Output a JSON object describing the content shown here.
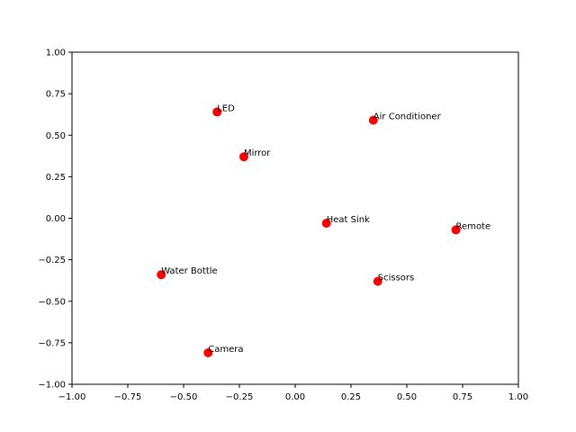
{
  "chart_data": {
    "type": "scatter",
    "title": "",
    "xlabel": "",
    "ylabel": "",
    "xlim": [
      -1.0,
      1.0
    ],
    "ylim": [
      -1.0,
      1.0
    ],
    "grid": false,
    "xticks": [
      -1.0,
      -0.75,
      -0.5,
      -0.25,
      0.0,
      0.25,
      0.5,
      0.75,
      1.0
    ],
    "yticks": [
      -1.0,
      -0.75,
      -0.5,
      -0.25,
      0.0,
      0.25,
      0.5,
      0.75,
      1.0
    ],
    "xtick_labels": [
      "−1.00",
      "−0.75",
      "−0.50",
      "−0.25",
      "0.00",
      "0.25",
      "0.50",
      "0.75",
      "1.00"
    ],
    "ytick_labels": [
      "−1.00",
      "−0.75",
      "−0.50",
      "−0.25",
      "0.00",
      "0.25",
      "0.50",
      "0.75",
      "1.00"
    ],
    "marker_color": "#ff0000",
    "points": [
      {
        "label": "LED",
        "x": -0.35,
        "y": 0.64
      },
      {
        "label": "Air Conditioner",
        "x": 0.35,
        "y": 0.59
      },
      {
        "label": "Mirror",
        "x": -0.23,
        "y": 0.37
      },
      {
        "label": "Heat Sink",
        "x": 0.14,
        "y": -0.03
      },
      {
        "label": "Remote",
        "x": 0.72,
        "y": -0.07
      },
      {
        "label": "Water Bottle",
        "x": -0.6,
        "y": -0.34
      },
      {
        "label": "Scissors",
        "x": 0.37,
        "y": -0.38
      },
      {
        "label": "Camera",
        "x": -0.39,
        "y": -0.81
      }
    ]
  }
}
